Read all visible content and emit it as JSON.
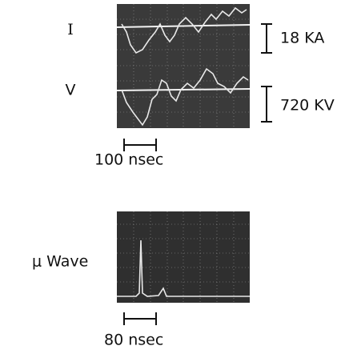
{
  "top_scope": {
    "trace_labels": [
      "I",
      "V"
    ],
    "scales": [
      "18 KA",
      "720 KV"
    ],
    "time_scale": "100 nsec"
  },
  "bottom_scope": {
    "label": "μ Wave",
    "time_scale": "80 nsec"
  }
}
